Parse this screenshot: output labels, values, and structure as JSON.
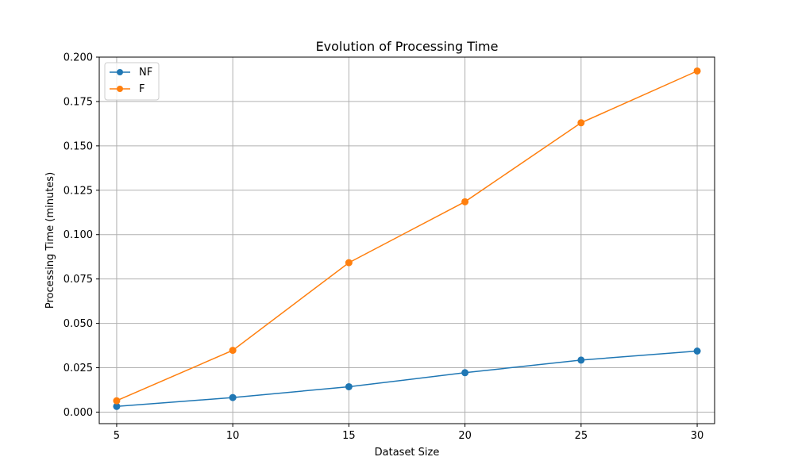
{
  "chart_data": {
    "type": "line",
    "title": "Evolution of Processing Time",
    "xlabel": "Dataset Size",
    "ylabel": "Processing Time (minutes)",
    "x": [
      5,
      10,
      15,
      20,
      25,
      30
    ],
    "xticks": [
      "5",
      "10",
      "15",
      "20",
      "25",
      "30"
    ],
    "yticks": [
      "0.000",
      "0.025",
      "0.050",
      "0.075",
      "0.100",
      "0.125",
      "0.150",
      "0.175",
      "0.200"
    ],
    "xlim": [
      4.25,
      30.75
    ],
    "ylim": [
      -0.0065,
      0.2
    ],
    "grid": true,
    "legend_position": "top-left",
    "series": [
      {
        "name": "NF",
        "color": "#1f77b4",
        "values": [
          0.0032,
          0.0082,
          0.0143,
          0.0222,
          0.0293,
          0.0344
        ]
      },
      {
        "name": "F",
        "color": "#ff7f0e",
        "values": [
          0.0064,
          0.0348,
          0.0842,
          0.1185,
          0.163,
          0.1922
        ]
      }
    ]
  }
}
